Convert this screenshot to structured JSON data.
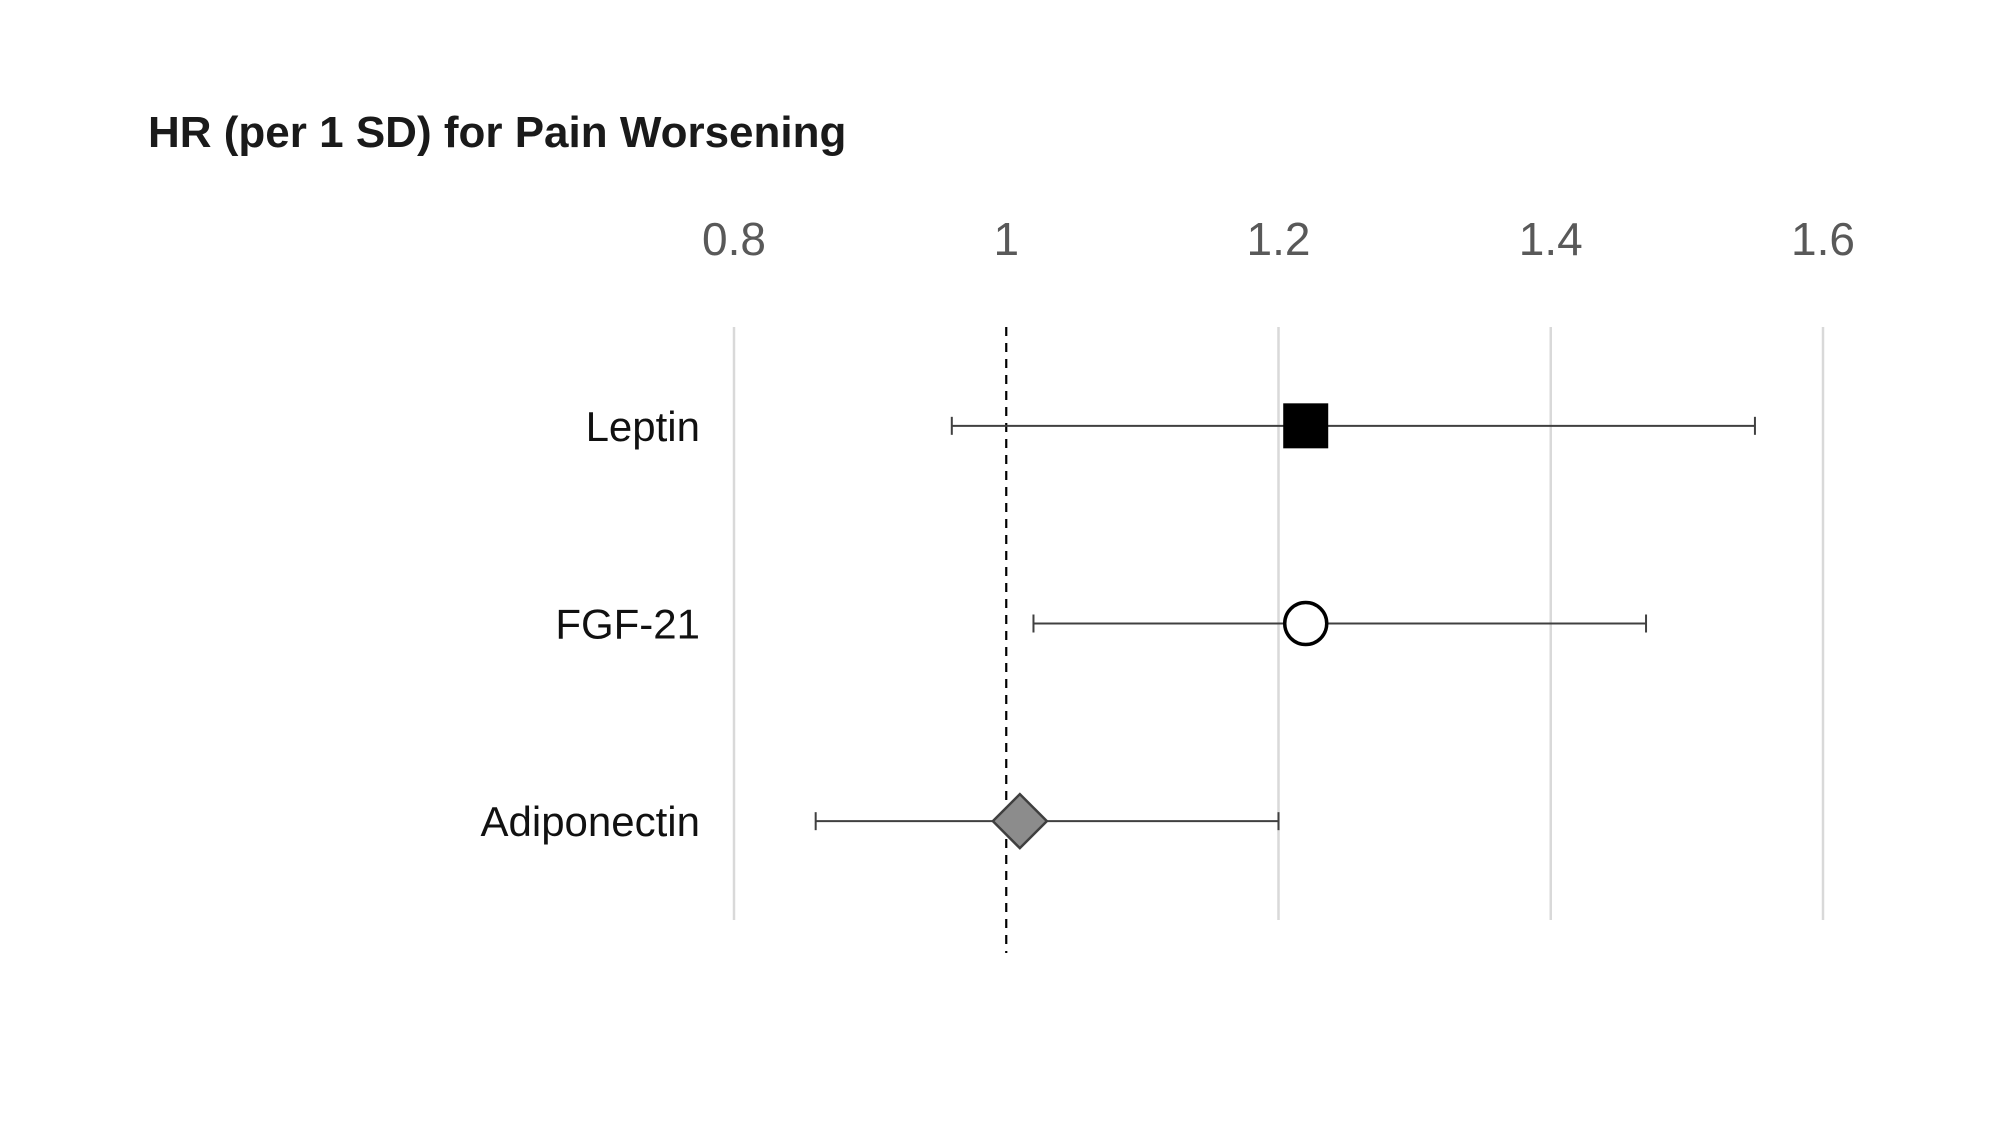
{
  "chart_data": {
    "type": "forest",
    "orientation": "horizontal",
    "title": "HR (per 1 SD) for Pain Worsening",
    "xlabel": "",
    "ylabel": "",
    "xlim": [
      0.8,
      1.6
    ],
    "x_ticks": [
      0.8,
      1.0,
      1.2,
      1.4,
      1.6
    ],
    "x_tick_labels": [
      "0.8",
      "1",
      "1.2",
      "1.4",
      "1.6"
    ],
    "reference_line": 1.0,
    "grid": true,
    "legend": "none",
    "series": [
      {
        "label": "Leptin",
        "hr": 1.22,
        "ci_low": 0.96,
        "ci_high": 1.55,
        "marker": "square",
        "marker_fill": "#000000",
        "marker_stroke": "#000000"
      },
      {
        "label": "FGF-21",
        "hr": 1.22,
        "ci_low": 1.02,
        "ci_high": 1.47,
        "marker": "circle",
        "marker_fill": "#ffffff",
        "marker_stroke": "#000000"
      },
      {
        "label": "Adiponectin",
        "hr": 1.01,
        "ci_low": 0.86,
        "ci_high": 1.2,
        "marker": "diamond",
        "marker_fill": "#8c8c8c",
        "marker_stroke": "#3f3f3f"
      }
    ]
  },
  "colors": {
    "background": "#ffffff",
    "gridline": "#d9d9d9",
    "reference_line": "#000000",
    "ci_line": "#404040",
    "tick_label": "#595959",
    "row_label": "#111111",
    "title": "#1a1a1a"
  }
}
